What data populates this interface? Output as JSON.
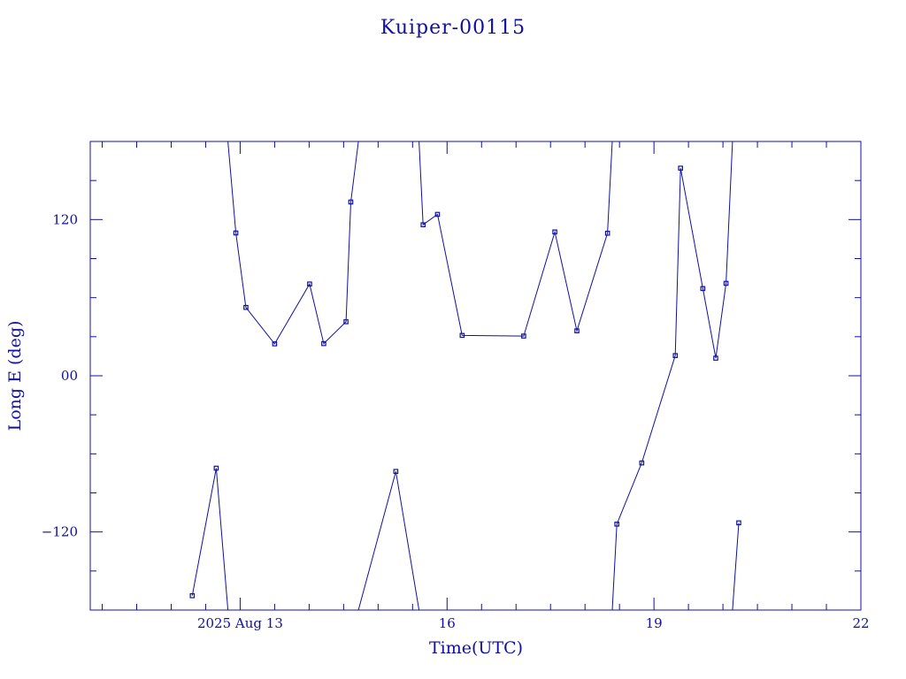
{
  "chart_data": {
    "type": "line",
    "title": "Kuiper-00115",
    "xlabel": "Time(UTC)",
    "ylabel": "Long E (deg)",
    "x_unit": "days",
    "xlim": [
      "2025-08-10T19:50",
      "2025-08-22T00:00"
    ],
    "ylim": [
      -180,
      180
    ],
    "x_ticks": [
      {
        "label": "2025 Aug 13",
        "value": "2025-08-13T00:00"
      },
      {
        "label": "16",
        "value": "2025-08-16T00:00"
      },
      {
        "label": "19",
        "value": "2025-08-19T00:00"
      },
      {
        "label": "22",
        "value": "2025-08-22T00:00"
      }
    ],
    "y_ticks": [
      {
        "label": "120",
        "value": 120
      },
      {
        "label": "00",
        "value": 0
      },
      {
        "label": "−120",
        "value": -120
      }
    ],
    "grid": false,
    "color": "#1010a0",
    "series": [
      {
        "segments": [
          [
            [
              "2025-08-12T07:20",
              -169.0
            ],
            [
              "2025-08-12T15:40",
              -71.0
            ],
            [
              "2025-08-12T19:45",
              -180.0
            ]
          ],
          [
            [
              "2025-08-12T19:45",
              180.0
            ],
            [
              "2025-08-12T22:30",
              109.7
            ],
            [
              "2025-08-13T02:00",
              52.5
            ],
            [
              "2025-08-13T12:00",
              24.5
            ],
            [
              "2025-08-14T00:10",
              70.5
            ],
            [
              "2025-08-14T05:05",
              24.7
            ],
            [
              "2025-08-14T12:50",
              41.5
            ],
            [
              "2025-08-14T14:30",
              133.5
            ],
            [
              "2025-08-14T17:10",
              180.0
            ]
          ],
          [
            [
              "2025-08-14T17:10",
              -180.0
            ],
            [
              "2025-08-15T06:10",
              -73.5
            ],
            [
              "2025-08-15T14:15",
              -180.0
            ]
          ],
          [
            [
              "2025-08-15T14:15",
              180.0
            ],
            [
              "2025-08-15T15:40",
              116.0
            ],
            [
              "2025-08-15T20:40",
              124.0
            ],
            [
              "2025-08-16T05:15",
              31.0
            ],
            [
              "2025-08-17T02:40",
              30.5
            ],
            [
              "2025-08-17T13:30",
              110.5
            ],
            [
              "2025-08-17T21:10",
              34.5
            ],
            [
              "2025-08-18T07:50",
              109.5
            ],
            [
              "2025-08-18T09:30",
              180.0
            ]
          ],
          [
            [
              "2025-08-18T09:30",
              -180.0
            ],
            [
              "2025-08-18T11:05",
              -114.0
            ],
            [
              "2025-08-18T19:45",
              -67.0
            ],
            [
              "2025-08-19T07:25",
              15.5
            ],
            [
              "2025-08-19T09:15",
              159.5
            ],
            [
              "2025-08-19T17:00",
              67.0
            ],
            [
              "2025-08-19T21:30",
              13.5
            ],
            [
              "2025-08-20T01:05",
              71.0
            ],
            [
              "2025-08-20T03:20",
              180.0
            ]
          ],
          [
            [
              "2025-08-20T03:20",
              -180.0
            ],
            [
              "2025-08-20T05:30",
              -113.0
            ]
          ]
        ]
      }
    ]
  }
}
